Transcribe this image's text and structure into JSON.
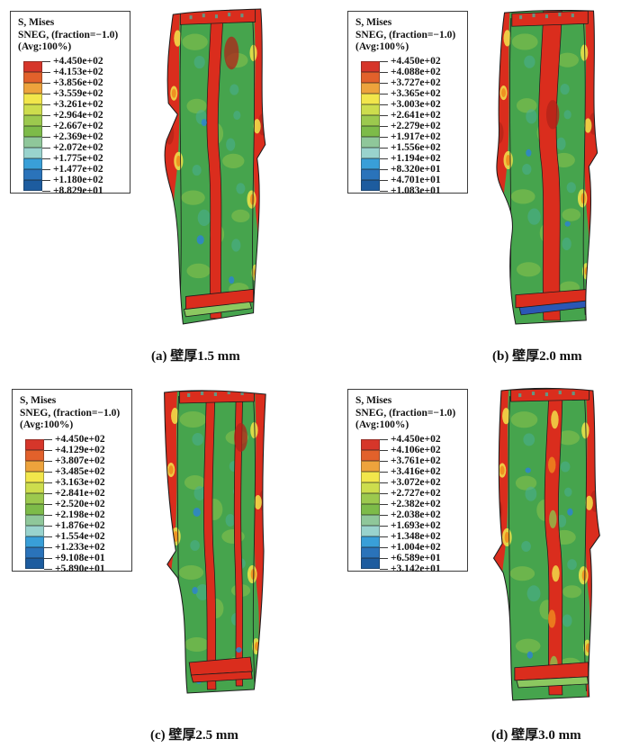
{
  "figure": {
    "legend_colors": [
      "#d6362a",
      "#e2612b",
      "#eda33c",
      "#f2e64b",
      "#cddd4d",
      "#9cc94e",
      "#7dbb49",
      "#8fc79a",
      "#99d3cd",
      "#399fd8",
      "#2a73ba",
      "#1d5c9f"
    ],
    "colors": {
      "red": "#da2d1d",
      "dark_red": "#b02318",
      "orange": "#ef8c1f",
      "yellow": "#f2e64b",
      "green": "#46a44d",
      "light_green": "#8cc24c",
      "teal": "#47b09b",
      "cyan_blue": "#2f86c8",
      "track_green": "#8cc860",
      "track_blue": "#2b57b5",
      "outline": "#1c1c1c"
    },
    "panels": [
      {
        "id": "a",
        "caption": "(a) 壁厚1.5 mm",
        "legend_title": [
          "S, Mises",
          "SNEG, (fraction=−1.0)",
          "(Avg:100%)"
        ],
        "legend_values": [
          "+4.450e+02",
          "+4.153e+02",
          "+3.856e+02",
          "+3.559e+02",
          "+3.261e+02",
          "+2.964e+02",
          "+2.667e+02",
          "+2.369e+02",
          "+2.072e+02",
          "+1.775e+02",
          "+1.477e+02",
          "+1.180e+02",
          "+8.829e+01"
        ]
      },
      {
        "id": "b",
        "caption": "(b) 壁厚2.0 mm",
        "legend_title": [
          "S, Mises",
          "SNEG, (fraction=−1.0)",
          "(Avg:100%)"
        ],
        "legend_values": [
          "+4.450e+02",
          "+4.088e+02",
          "+3.727e+02",
          "+3.365e+02",
          "+3.003e+02",
          "+2.641e+02",
          "+2.279e+02",
          "+1.917e+02",
          "+1.556e+02",
          "+1.194e+02",
          "+8.320e+01",
          "+4.701e+01",
          "+1.083e+01"
        ]
      },
      {
        "id": "c",
        "caption": "(c) 壁厚2.5 mm",
        "legend_title": [
          "S, Mises",
          "SNEG, (fraction=−1.0)",
          "(Avg:100%)"
        ],
        "legend_values": [
          "+4.450e+02",
          "+4.129e+02",
          "+3.807e+02",
          "+3.485e+02",
          "+3.163e+02",
          "+2.841e+02",
          "+2.520e+02",
          "+2.198e+02",
          "+1.876e+02",
          "+1.554e+02",
          "+1.233e+02",
          "+9.108e+01",
          "+5.890e+01"
        ]
      },
      {
        "id": "d",
        "caption": "(d) 壁厚3.0 mm",
        "legend_title": [
          "S, Mises",
          "SNEG, (fraction=−1.0)",
          "(Avg:100%)"
        ],
        "legend_values": [
          "+4.450e+02",
          "+4.106e+02",
          "+3.761e+02",
          "+3.416e+02",
          "+3.072e+02",
          "+2.727e+02",
          "+2.382e+02",
          "+2.038e+02",
          "+1.693e+02",
          "+1.348e+02",
          "+1.004e+02",
          "+6.589e+01",
          "+3.142e+01"
        ]
      }
    ]
  },
  "chart_data": [
    {
      "type": "heatmap",
      "title": "(a) 壁厚1.5 mm",
      "field": "S, Mises",
      "legend_note": "SNEG, (fraction=−1.0) (Avg:100%)",
      "colorbar_ticks": [
        445.0,
        415.3,
        385.6,
        355.9,
        326.1,
        296.4,
        266.7,
        236.9,
        207.2,
        177.5,
        147.7,
        118.0,
        88.29
      ],
      "range": [
        88.29,
        445.0
      ],
      "legend_position": "top-left"
    },
    {
      "type": "heatmap",
      "title": "(b) 壁厚2.0 mm",
      "field": "S, Mises",
      "legend_note": "SNEG, (fraction=−1.0) (Avg:100%)",
      "colorbar_ticks": [
        445.0,
        408.8,
        372.7,
        336.5,
        300.3,
        264.1,
        227.9,
        191.7,
        155.6,
        119.4,
        83.2,
        47.01,
        10.83
      ],
      "range": [
        10.83,
        445.0
      ],
      "legend_position": "top-left"
    },
    {
      "type": "heatmap",
      "title": "(c) 壁厚2.5 mm",
      "field": "S, Mises",
      "legend_note": "SNEG, (fraction=−1.0) (Avg:100%)",
      "colorbar_ticks": [
        445.0,
        412.9,
        380.7,
        348.5,
        316.3,
        284.1,
        252.0,
        219.8,
        187.6,
        155.4,
        123.3,
        91.08,
        58.9
      ],
      "range": [
        58.9,
        445.0
      ],
      "legend_position": "top-left"
    },
    {
      "type": "heatmap",
      "title": "(d) 壁厚3.0 mm",
      "field": "S, Mises",
      "legend_note": "SNEG, (fraction=−1.0) (Avg:100%)",
      "colorbar_ticks": [
        445.0,
        410.6,
        376.1,
        341.6,
        307.2,
        272.7,
        238.2,
        203.8,
        169.3,
        134.8,
        100.4,
        65.89,
        31.42
      ],
      "range": [
        31.42,
        445.0
      ],
      "legend_position": "top-left"
    }
  ]
}
